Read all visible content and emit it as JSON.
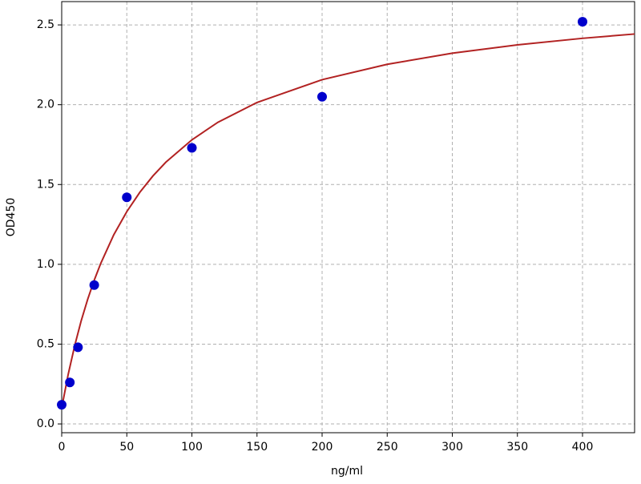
{
  "chart_data": {
    "type": "scatter",
    "x_label": "ng/ml",
    "y_label": "OD450",
    "series": [
      {
        "color": "#0000cc",
        "x": [
          0,
          6.25,
          12.5,
          25,
          50,
          100,
          200,
          400
        ],
        "values": [
          0.12,
          0.26,
          0.48,
          0.87,
          1.42,
          1.73,
          2.05,
          2.52
        ]
      }
    ],
    "curve": {
      "color": "#b22222",
      "x": [
        0,
        5,
        10,
        15,
        20,
        25,
        30,
        40,
        50,
        60,
        70,
        80,
        100,
        120,
        150,
        200,
        250,
        300,
        350,
        400,
        440
      ],
      "values": [
        0.1,
        0.311,
        0.491,
        0.647,
        0.782,
        0.901,
        1.006,
        1.185,
        1.33,
        1.451,
        1.553,
        1.64,
        1.78,
        1.89,
        2.014,
        2.157,
        2.253,
        2.323,
        2.375,
        2.416,
        2.443
      ]
    },
    "xlim": [
      0,
      440
    ],
    "ylim": [
      -0.055,
      2.646
    ],
    "xticks": [
      0,
      50,
      100,
      150,
      200,
      250,
      300,
      350,
      400
    ],
    "yticks": [
      {
        "value": 0,
        "label": "0.0"
      },
      0.5,
      {
        "value": 1,
        "label": "1.0"
      },
      1.5,
      {
        "value": 2,
        "label": "2.0"
      },
      2.5
    ],
    "grid": true
  }
}
